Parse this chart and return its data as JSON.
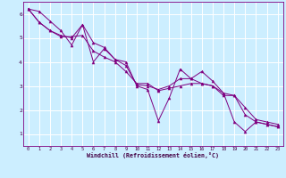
{
  "xlabel": "Windchill (Refroidissement éolien,°C)",
  "bg_color": "#cceeff",
  "grid_color": "#ffffff",
  "line_color": "#800080",
  "xlim": [
    -0.5,
    23.5
  ],
  "ylim": [
    0.5,
    6.5
  ],
  "yticks": [
    1,
    2,
    3,
    4,
    5,
    6
  ],
  "xticks": [
    0,
    1,
    2,
    3,
    4,
    5,
    6,
    7,
    8,
    9,
    10,
    11,
    12,
    13,
    14,
    15,
    16,
    17,
    18,
    19,
    20,
    21,
    22,
    23
  ],
  "series": [
    [
      6.2,
      6.1,
      5.7,
      5.3,
      4.7,
      5.55,
      4.0,
      4.55,
      4.1,
      4.0,
      3.0,
      2.85,
      1.55,
      2.5,
      3.7,
      3.3,
      3.6,
      3.2,
      2.7,
      1.5,
      1.1,
      1.5,
      1.4,
      1.3
    ],
    [
      6.2,
      5.65,
      5.3,
      5.1,
      5.0,
      5.55,
      4.8,
      4.6,
      4.1,
      3.85,
      3.05,
      3.0,
      2.85,
      3.0,
      3.3,
      3.3,
      3.1,
      3.0,
      2.7,
      2.6,
      1.8,
      1.5,
      1.4,
      1.3
    ],
    [
      6.2,
      5.65,
      5.3,
      5.05,
      5.05,
      5.1,
      4.45,
      4.2,
      4.0,
      3.6,
      3.1,
      3.1,
      2.8,
      2.9,
      3.0,
      3.1,
      3.1,
      3.0,
      2.6,
      2.6,
      2.1,
      1.6,
      1.5,
      1.4
    ]
  ]
}
